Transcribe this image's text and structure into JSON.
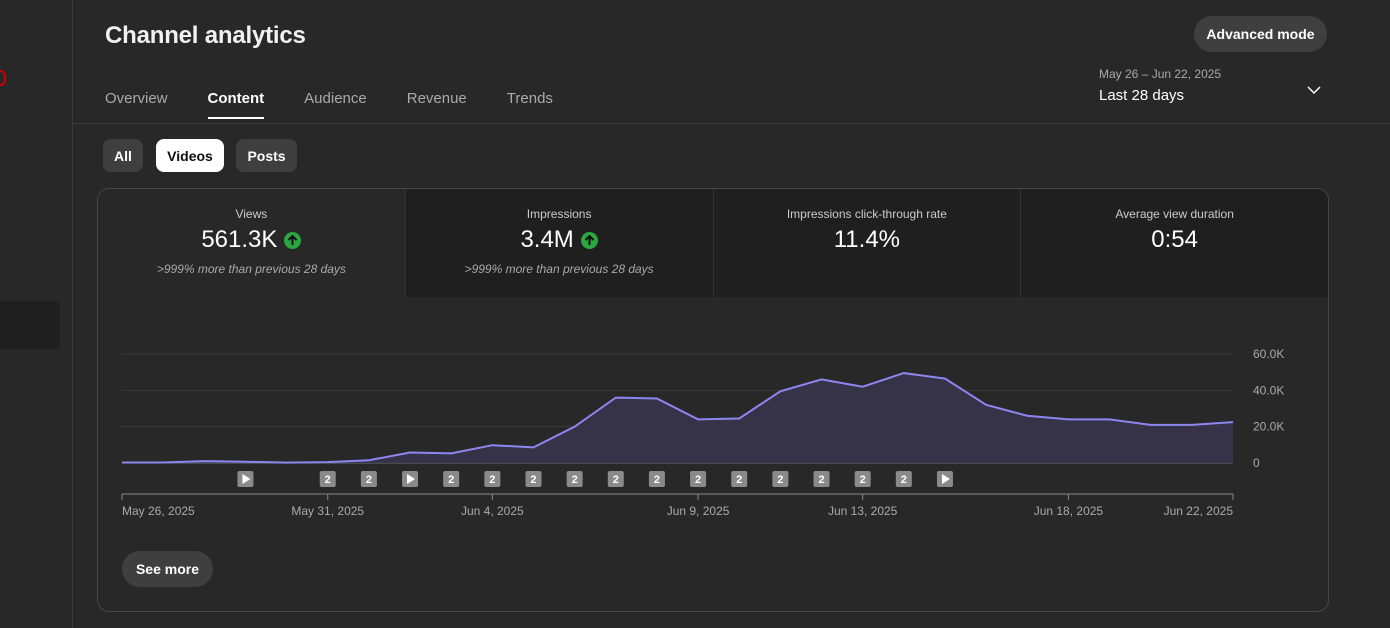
{
  "header": {
    "title": "Channel analytics",
    "advanced_mode_label": "Advanced mode"
  },
  "tabs": [
    {
      "label": "Overview",
      "active": false
    },
    {
      "label": "Content",
      "active": true
    },
    {
      "label": "Audience",
      "active": false
    },
    {
      "label": "Revenue",
      "active": false
    },
    {
      "label": "Trends",
      "active": false
    }
  ],
  "date_range": {
    "range": "May 26 – Jun 22, 2025",
    "label": "Last 28 days",
    "icon": "chevron-down-icon"
  },
  "filters": [
    {
      "label": "All",
      "selected": false
    },
    {
      "label": "Videos",
      "selected": true
    },
    {
      "label": "Posts",
      "selected": false
    }
  ],
  "metrics": [
    {
      "label": "Views",
      "value": "561.3K",
      "trend_up": true,
      "comparison": ">999% more than previous 28 days",
      "active": true
    },
    {
      "label": "Impressions",
      "value": "3.4M",
      "trend_up": true,
      "comparison": ">999% more than previous 28 days",
      "active": false
    },
    {
      "label": "Impressions click-through rate",
      "value": "11.4%",
      "trend_up": false,
      "comparison": "",
      "active": false
    },
    {
      "label": "Average view duration",
      "value": "0:54",
      "trend_up": false,
      "comparison": "",
      "active": false
    }
  ],
  "chart_data": {
    "type": "area",
    "series": [
      {
        "values": [
          300,
          300,
          1000,
          700,
          200,
          500,
          1500,
          5800,
          5300,
          9800,
          8600,
          20000,
          36000,
          35500,
          24000,
          24500,
          39500,
          46000,
          42000,
          49500,
          46500,
          32000,
          26000,
          24000,
          24000,
          21000,
          21000,
          22500
        ]
      }
    ],
    "x_tick_labels": [
      "May 26, 2025",
      "May 31, 2025",
      "Jun 4, 2025",
      "Jun 9, 2025",
      "Jun 13, 2025",
      "Jun 18, 2025",
      "Jun 22, 2025"
    ],
    "x_tick_day_index": [
      0,
      5,
      9,
      14,
      18,
      23,
      27
    ],
    "y_tick_labels": [
      "0",
      "20.0K",
      "40.0K",
      "60.0K"
    ],
    "y_tick_values": [
      0,
      20000,
      40000,
      60000
    ],
    "ylim": [
      0,
      60000
    ],
    "grid": true,
    "line_color": "#8e86f0",
    "fill_color": "#38354f",
    "upload_markers": [
      {
        "day": 3,
        "kind": "play"
      },
      {
        "day": 5,
        "kind": "count",
        "label": "2"
      },
      {
        "day": 6,
        "kind": "count",
        "label": "2"
      },
      {
        "day": 7,
        "kind": "play"
      },
      {
        "day": 8,
        "kind": "count",
        "label": "2"
      },
      {
        "day": 9,
        "kind": "count",
        "label": "2"
      },
      {
        "day": 10,
        "kind": "count",
        "label": "2"
      },
      {
        "day": 11,
        "kind": "count",
        "label": "2"
      },
      {
        "day": 12,
        "kind": "count",
        "label": "2"
      },
      {
        "day": 13,
        "kind": "count",
        "label": "2"
      },
      {
        "day": 14,
        "kind": "count",
        "label": "2"
      },
      {
        "day": 15,
        "kind": "count",
        "label": "2"
      },
      {
        "day": 16,
        "kind": "count",
        "label": "2"
      },
      {
        "day": 17,
        "kind": "count",
        "label": "2"
      },
      {
        "day": 18,
        "kind": "count",
        "label": "2"
      },
      {
        "day": 19,
        "kind": "count",
        "label": "2"
      },
      {
        "day": 20,
        "kind": "play"
      }
    ]
  },
  "see_more_label": "See more"
}
